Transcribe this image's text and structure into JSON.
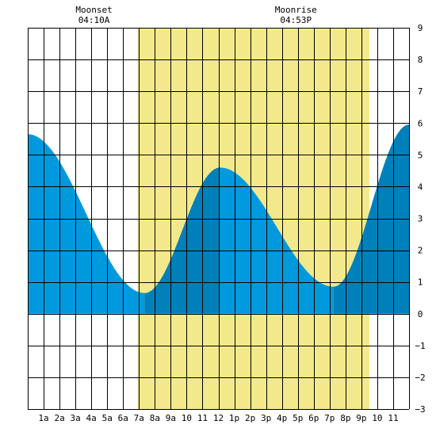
{
  "chart_data": {
    "type": "area",
    "title": "",
    "xlabel": "",
    "ylabel": "",
    "xlim": [
      0,
      24
    ],
    "ylim": [
      -3,
      9
    ],
    "grid": true,
    "x_ticks": [
      {
        "x": 1,
        "label": "1a"
      },
      {
        "x": 2,
        "label": "2a"
      },
      {
        "x": 3,
        "label": "3a"
      },
      {
        "x": 4,
        "label": "4a"
      },
      {
        "x": 5,
        "label": "5a"
      },
      {
        "x": 6,
        "label": "6a"
      },
      {
        "x": 7,
        "label": "7a"
      },
      {
        "x": 8,
        "label": "8a"
      },
      {
        "x": 9,
        "label": "9a"
      },
      {
        "x": 10,
        "label": "10"
      },
      {
        "x": 11,
        "label": "11"
      },
      {
        "x": 12,
        "label": "12"
      },
      {
        "x": 13,
        "label": "1p"
      },
      {
        "x": 14,
        "label": "2p"
      },
      {
        "x": 15,
        "label": "3p"
      },
      {
        "x": 16,
        "label": "4p"
      },
      {
        "x": 17,
        "label": "5p"
      },
      {
        "x": 18,
        "label": "6p"
      },
      {
        "x": 19,
        "label": "7p"
      },
      {
        "x": 20,
        "label": "8p"
      },
      {
        "x": 21,
        "label": "9p"
      },
      {
        "x": 22,
        "label": "10"
      },
      {
        "x": 23,
        "label": "11"
      }
    ],
    "y_ticks": [
      {
        "y": 9,
        "label": "9"
      },
      {
        "y": 8,
        "label": "8"
      },
      {
        "y": 7,
        "label": "7"
      },
      {
        "y": 6,
        "label": "6"
      },
      {
        "y": 5,
        "label": "5"
      },
      {
        "y": 4,
        "label": "4"
      },
      {
        "y": 3,
        "label": "3"
      },
      {
        "y": 2,
        "label": "2"
      },
      {
        "y": 1,
        "label": "1"
      },
      {
        "y": 0,
        "label": "0"
      },
      {
        "y": -1,
        "label": "−1"
      },
      {
        "y": -2,
        "label": "−2"
      },
      {
        "y": -3,
        "label": "−3"
      }
    ],
    "extremes": [
      {
        "x": 0.0,
        "y": 5.65
      },
      {
        "x": 7.35,
        "y": 0.65
      },
      {
        "x": 12.1,
        "y": 4.6
      },
      {
        "x": 19.25,
        "y": 0.85
      },
      {
        "x": 24.0,
        "y": 5.95
      }
    ],
    "daylight_band": {
      "start": 6.9,
      "end": 21.5
    },
    "annotations": [
      {
        "id": "moonset",
        "label": "Moonset",
        "time": "04:10A",
        "x": 4.17
      },
      {
        "id": "moonrise",
        "label": "Moonrise",
        "time": "04:53P",
        "x": 16.88
      }
    ],
    "colors": {
      "falling_fill": "#0099dd",
      "rising_fill": "#0080bb",
      "daylight": "#f3e98a",
      "grid": "#000000",
      "background": "#ffffff"
    }
  }
}
